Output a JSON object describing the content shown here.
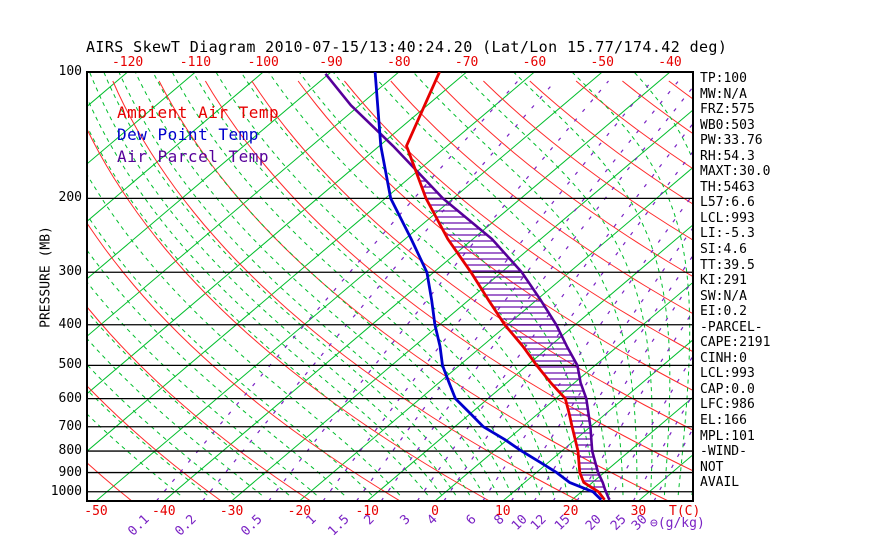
{
  "title": "AIRS SkewT Diagram 2010-07-15/13:40:24.20 (Lat/Lon 15.77/174.42 deg)",
  "legend": {
    "ambient_label": "Ambient Air Temp",
    "dew_label": "Dew Point Temp",
    "parcel_label": "Air Parcel Temp"
  },
  "axes": {
    "pressure_axis_label": "PRESSURE (MB)",
    "pressure_ticks_mb": [
      100,
      200,
      300,
      400,
      500,
      600,
      700,
      800,
      900,
      1000
    ],
    "top_temp_ticks_c": [
      -120,
      -110,
      -100,
      -90,
      -80,
      -70,
      -60,
      -50,
      -40
    ],
    "bottom_temp_ticks_c": [
      -50,
      -40,
      -30,
      -20,
      -10,
      0,
      10,
      20,
      30
    ],
    "temp_unit_label": "T(C)",
    "mixing_unit_label": "⊖(g/kg)",
    "mixing_ratio_ticks": [
      "0.1",
      "0.2",
      "0.5",
      "1",
      "1.5",
      "2",
      "3",
      "4",
      "6",
      "8",
      "10",
      "12",
      "15",
      "20",
      "25",
      "30"
    ]
  },
  "indices": [
    "TP:100",
    "MW:N/A",
    "FRZ:575",
    "WB0:503",
    "PW:33.76",
    "RH:54.3",
    "MAXT:30.0",
    "TH:5463",
    "L57:6.6",
    "LCL:993",
    "LI:-5.3",
    "SI:4.6",
    "TT:39.5",
    "KI:291",
    "SW:N/A",
    "EI:0.2",
    "-PARCEL-",
    "CAPE:2191",
    "CINH:0",
    "LCL:993",
    "CAP:0.0",
    "LFC:986",
    "EL:166",
    "MPL:101",
    "-WIND-",
    "NOT",
    "AVAIL"
  ],
  "colors": {
    "isotherm_green": "#00be2c",
    "dry_adiabat_red": "#ff2a2a",
    "moist_adiabat_green": "#00be2c",
    "mixing_ratio_purple": "#7a22c4",
    "ambient_curve": "#e60000",
    "dewpoint_curve": "#0000cc",
    "parcel_curve": "#56009a",
    "cape_hatch": "#6a0dad",
    "axis_black": "#000000",
    "tick_red": "#e60000"
  },
  "chart_data": {
    "type": "skewt",
    "title": "AIRS SkewT Diagram 2010-07-15/13:40:24.20 (Lat/Lon 15.77/174.42 deg)",
    "pressure_axis_mb": [
      100,
      1050
    ],
    "temp_axis_c": [
      -50,
      30
    ],
    "grid": {
      "isotherm_from_c": -160,
      "isotherm_to_c": 40,
      "isotherm_step_c": 10,
      "dry_adiabat_theta_from_c": -87,
      "dry_adiabat_theta_to_c": 303,
      "dry_adiabat_theta_step_c": 13,
      "moist_adiabat_surface_temps_c": [
        -36,
        -32,
        -28,
        -24,
        -20,
        -16,
        -12,
        -8,
        -4,
        0,
        2,
        4,
        6,
        8,
        10,
        12,
        14,
        16,
        18,
        20,
        22,
        24,
        26,
        28,
        30,
        32,
        34,
        36,
        38
      ],
      "mixing_ratio_lines_g_kg": [
        0.1,
        0.2,
        0.5,
        1,
        1.5,
        2,
        3,
        4,
        6,
        8,
        10,
        12,
        15,
        20,
        25,
        30
      ]
    },
    "profiles": {
      "ambient_temp_c": [
        [
          100,
          -74
        ],
        [
          150,
          -66
        ],
        [
          200,
          -54
        ],
        [
          250,
          -43.7
        ],
        [
          300,
          -34.5
        ],
        [
          350,
          -27
        ],
        [
          400,
          -20.4
        ],
        [
          450,
          -14
        ],
        [
          500,
          -8.6
        ],
        [
          550,
          -3.5
        ],
        [
          600,
          1.4
        ],
        [
          650,
          4.5
        ],
        [
          700,
          7.3
        ],
        [
          800,
          12.4
        ],
        [
          900,
          16.4
        ],
        [
          950,
          18.7
        ],
        [
          1000,
          22.5
        ],
        [
          1045,
          24.8
        ]
      ],
      "dew_point_c": [
        [
          100,
          -83.5
        ],
        [
          150,
          -69.8
        ],
        [
          200,
          -59.2
        ],
        [
          250,
          -49.1
        ],
        [
          300,
          -41
        ],
        [
          350,
          -35.4
        ],
        [
          400,
          -30.7
        ],
        [
          450,
          -26.2
        ],
        [
          500,
          -22.5
        ],
        [
          550,
          -18.5
        ],
        [
          600,
          -14.8
        ],
        [
          650,
          -10.1
        ],
        [
          700,
          -5.8
        ],
        [
          750,
          -0.5
        ],
        [
          800,
          4.1
        ],
        [
          850,
          8.7
        ],
        [
          900,
          13
        ],
        [
          950,
          16.6
        ],
        [
          1000,
          21.7
        ],
        [
          1045,
          24.3
        ]
      ],
      "parcel_temp_c": [
        [
          101,
          -90.5
        ],
        [
          120,
          -81.3
        ],
        [
          150,
          -68
        ],
        [
          200,
          -51.5
        ],
        [
          250,
          -37.2
        ],
        [
          300,
          -27
        ],
        [
          350,
          -19.3
        ],
        [
          400,
          -12.8
        ],
        [
          450,
          -7.5
        ],
        [
          500,
          -2.6
        ],
        [
          550,
          0.9
        ],
        [
          600,
          4.5
        ],
        [
          700,
          10
        ],
        [
          800,
          14.5
        ],
        [
          900,
          19.1
        ],
        [
          950,
          21.5
        ],
        [
          986,
          23
        ],
        [
          1045,
          25.5
        ]
      ]
    },
    "cape_hatch_region": {
      "p_top_mb": 170,
      "p_bottom_mb": 988
    },
    "sounding_indices": [
      "TP:100",
      "MW:N/A",
      "FRZ:575",
      "WB0:503",
      "PW:33.76",
      "RH:54.3",
      "MAXT:30.0",
      "TH:5463",
      "L57:6.6",
      "LCL:993",
      "LI:-5.3",
      "SI:4.6",
      "TT:39.5",
      "KI:291",
      "SW:N/A",
      "EI:0.2",
      "-PARCEL-",
      "CAPE:2191",
      "CINH:0",
      "LCL:993",
      "CAP:0.0",
      "LFC:986",
      "EL:166",
      "MPL:101",
      "-WIND-",
      "NOT",
      "AVAIL"
    ]
  }
}
